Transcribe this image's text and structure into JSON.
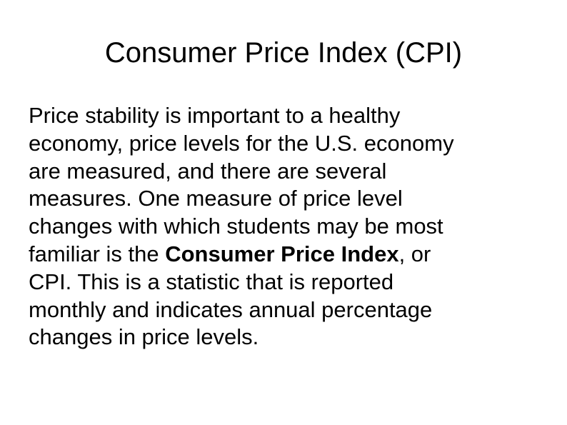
{
  "slide": {
    "title": "Consumer Price Index (CPI)",
    "body": {
      "lines": [
        "Price stability is important to a healthy",
        "economy, price levels for the U.S. economy",
        "are measured, and there are several",
        "measures. One measure of price level",
        "changes with which students may be most"
      ],
      "line6_before": "familiar is the ",
      "highlight_term": "Consumer Price Index",
      "line6_after": ", or",
      "lines_after": [
        "CPI. This is a statistic that is reported",
        "monthly and indicates annual percentage",
        "changes in price levels."
      ]
    }
  }
}
